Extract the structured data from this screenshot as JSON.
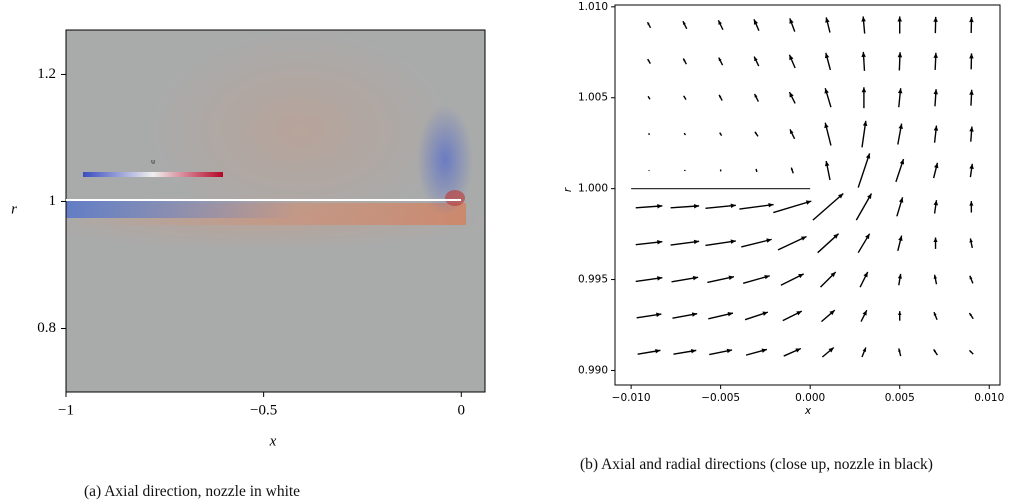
{
  "chart_data": [
    {
      "type": "heatmap",
      "caption": "(a) Axial direction, nozzle in white",
      "xlabel": "x",
      "ylabel": "r",
      "xlim": [
        -1,
        0.06
      ],
      "ylim": [
        0.7,
        1.27
      ],
      "xticks": [
        {
          "value": -1,
          "label": "−1"
        },
        {
          "value": -0.5,
          "label": "−0.5"
        },
        0
      ],
      "yticks": [
        0.8,
        1,
        1.2
      ],
      "colorbar_title": "u"
    },
    {
      "type": "quiver",
      "caption": "(b) Axial and radial directions (close up, nozzle in black)",
      "xlabel": "x",
      "ylabel": "r",
      "xlim": [
        -0.0109,
        0.0106
      ],
      "ylim": [
        0.9892,
        1.0101
      ],
      "xticks": [
        {
          "value": -0.01,
          "label": "−0.010"
        },
        {
          "value": -0.005,
          "label": "−0.005"
        },
        {
          "value": 0,
          "label": "0.000"
        },
        {
          "value": 0.005,
          "label": "0.005"
        },
        {
          "value": 0.01,
          "label": "0.010"
        }
      ],
      "yticks": [
        {
          "value": 0.99,
          "label": "0.990"
        },
        {
          "value": 0.995,
          "label": "0.995"
        },
        {
          "value": 1,
          "label": "1.000"
        },
        {
          "value": 1.005,
          "label": "1.005"
        },
        {
          "value": 1.01,
          "label": "1.010"
        }
      ],
      "x": [
        -0.009,
        -0.007,
        -0.005,
        -0.003,
        -0.001,
        0.001,
        0.003,
        0.005,
        0.007,
        0.009
      ],
      "y": [
        0.991,
        0.993,
        0.995,
        0.997,
        0.999,
        1.001,
        1.003,
        1.005,
        1.007,
        1.009
      ],
      "u": [
        [
          0.6,
          0.6,
          0.6,
          0.55,
          0.45,
          0.3,
          0.1,
          -0.05,
          -0.1,
          -0.1
        ],
        [
          0.65,
          0.65,
          0.65,
          0.6,
          0.5,
          0.35,
          0.15,
          0,
          -0.08,
          -0.1
        ],
        [
          0.7,
          0.7,
          0.7,
          0.7,
          0.6,
          0.4,
          0.2,
          0.05,
          -0.05,
          -0.08
        ],
        [
          0.7,
          0.75,
          0.8,
          0.8,
          0.75,
          0.55,
          0.3,
          0.1,
          0,
          -0.05
        ],
        [
          0.7,
          0.75,
          0.8,
          0.9,
          1.0,
          0.8,
          0.4,
          0.15,
          0.05,
          0
        ],
        [
          0,
          0,
          0,
          -0.02,
          -0.05,
          -0.1,
          0.3,
          0.2,
          0.1,
          0.05
        ],
        [
          -0.02,
          -0.03,
          -0.05,
          -0.08,
          -0.12,
          -0.15,
          0.1,
          0.1,
          0.05,
          0.03
        ],
        [
          -0.05,
          -0.06,
          -0.08,
          -0.1,
          -0.15,
          -0.15,
          0,
          0.05,
          0.03,
          0.02
        ],
        [
          -0.07,
          -0.08,
          -0.1,
          -0.12,
          -0.15,
          -0.12,
          -0.03,
          0.02,
          0.02,
          0.01
        ],
        [
          -0.08,
          -0.1,
          -0.12,
          -0.13,
          -0.13,
          -0.1,
          -0.04,
          0,
          0.01,
          0.01
        ]
      ],
      "v": [
        [
          0.1,
          0.1,
          0.12,
          0.15,
          0.2,
          0.25,
          0.25,
          0.2,
          0.15,
          0.1
        ],
        [
          0.1,
          0.12,
          0.15,
          0.2,
          0.25,
          0.3,
          0.3,
          0.25,
          0.2,
          0.15
        ],
        [
          0.1,
          0.12,
          0.15,
          0.2,
          0.3,
          0.4,
          0.4,
          0.3,
          0.25,
          0.2
        ],
        [
          0.08,
          0.1,
          0.12,
          0.2,
          0.35,
          0.5,
          0.5,
          0.4,
          0.3,
          0.25
        ],
        [
          0.05,
          0.05,
          0.08,
          0.12,
          0.3,
          0.7,
          0.7,
          0.5,
          0.35,
          0.3
        ],
        [
          0.02,
          0.03,
          0.05,
          0.08,
          0.15,
          0.5,
          0.9,
          0.6,
          0.4,
          0.35
        ],
        [
          0.04,
          0.05,
          0.08,
          0.12,
          0.25,
          0.6,
          0.7,
          0.55,
          0.45,
          0.4
        ],
        [
          0.08,
          0.1,
          0.15,
          0.2,
          0.3,
          0.5,
          0.55,
          0.5,
          0.45,
          0.42
        ],
        [
          0.12,
          0.15,
          0.2,
          0.25,
          0.35,
          0.45,
          0.5,
          0.48,
          0.45,
          0.42
        ],
        [
          0.15,
          0.2,
          0.25,
          0.3,
          0.35,
          0.4,
          0.45,
          0.45,
          0.43,
          0.42
        ]
      ]
    }
  ]
}
